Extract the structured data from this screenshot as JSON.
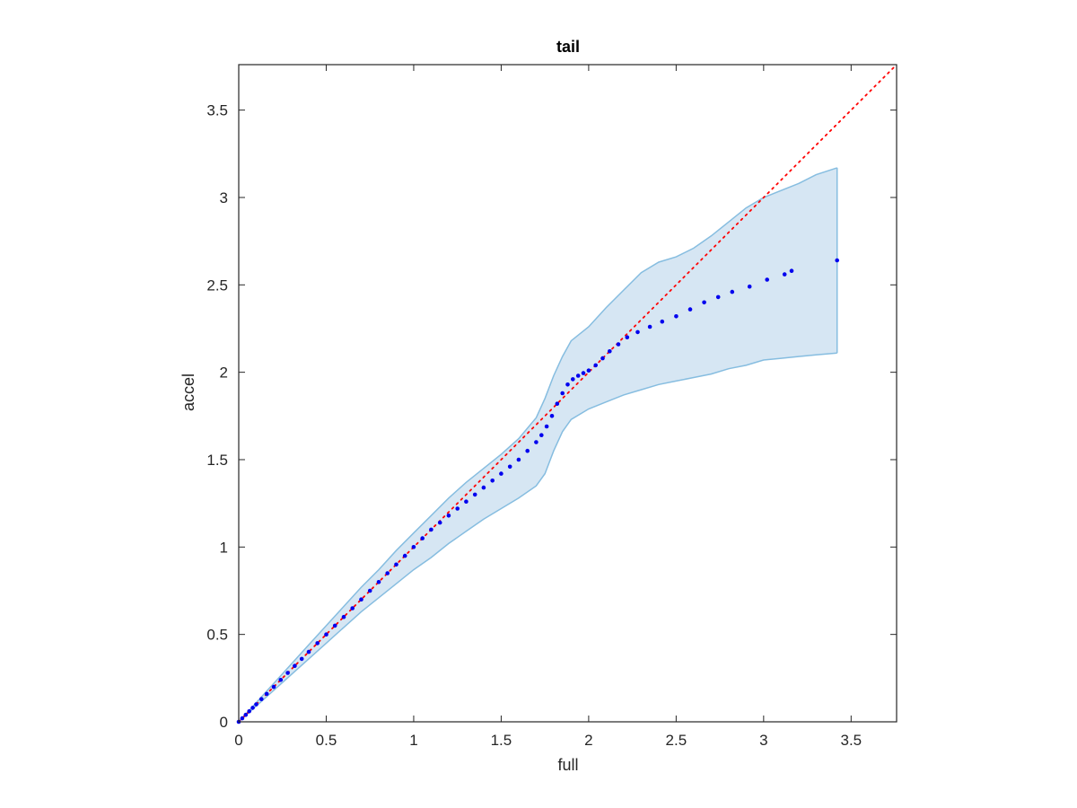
{
  "chart_data": {
    "type": "scatter",
    "title": "tail",
    "xlabel": "full",
    "ylabel": "accel",
    "xlim": [
      0,
      3.76
    ],
    "ylim": [
      0,
      3.76
    ],
    "xticks": [
      0,
      0.5,
      1,
      1.5,
      2,
      2.5,
      3,
      3.5
    ],
    "yticks": [
      0,
      0.5,
      1,
      1.5,
      2,
      2.5,
      3,
      3.5
    ],
    "xtick_labels": [
      "0",
      "0.5",
      "1",
      "1.5",
      "2",
      "2.5",
      "3",
      "3.5"
    ],
    "ytick_labels": [
      "0",
      "0.5",
      "1",
      "1.5",
      "2",
      "2.5",
      "3",
      "3.5"
    ],
    "grid": false,
    "colors": {
      "points": "#0000ee",
      "reference_line": "#ff0000",
      "band_fill": "#d6e6f3",
      "band_edge": "#86bde0",
      "axes": "#262626"
    },
    "reference_line": {
      "style": "dotted",
      "x": [
        0,
        3.76
      ],
      "y": [
        0,
        3.76
      ]
    },
    "band": {
      "x": [
        0.0,
        0.1,
        0.2,
        0.3,
        0.4,
        0.5,
        0.6,
        0.7,
        0.8,
        0.9,
        1.0,
        1.1,
        1.2,
        1.3,
        1.4,
        1.5,
        1.6,
        1.7,
        1.75,
        1.8,
        1.85,
        1.9,
        2.0,
        2.1,
        2.2,
        2.3,
        2.4,
        2.5,
        2.6,
        2.7,
        2.8,
        2.9,
        3.0,
        3.1,
        3.2,
        3.3,
        3.42
      ],
      "upper": [
        0.0,
        0.11,
        0.22,
        0.33,
        0.44,
        0.55,
        0.66,
        0.77,
        0.87,
        0.98,
        1.08,
        1.18,
        1.28,
        1.37,
        1.45,
        1.53,
        1.62,
        1.74,
        1.85,
        1.98,
        2.09,
        2.18,
        2.26,
        2.37,
        2.47,
        2.57,
        2.63,
        2.66,
        2.71,
        2.78,
        2.86,
        2.94,
        3.0,
        3.04,
        3.08,
        3.13,
        3.17
      ],
      "lower": [
        0.0,
        0.09,
        0.18,
        0.27,
        0.36,
        0.45,
        0.54,
        0.63,
        0.71,
        0.79,
        0.87,
        0.94,
        1.02,
        1.09,
        1.16,
        1.22,
        1.28,
        1.35,
        1.42,
        1.55,
        1.66,
        1.73,
        1.79,
        1.83,
        1.87,
        1.9,
        1.93,
        1.95,
        1.97,
        1.99,
        2.02,
        2.04,
        2.07,
        2.08,
        2.09,
        2.1,
        2.11
      ]
    },
    "points": {
      "x": [
        0.0,
        0.02,
        0.04,
        0.06,
        0.08,
        0.1,
        0.13,
        0.16,
        0.2,
        0.24,
        0.28,
        0.32,
        0.36,
        0.4,
        0.45,
        0.5,
        0.55,
        0.6,
        0.65,
        0.7,
        0.75,
        0.8,
        0.85,
        0.9,
        0.95,
        1.0,
        1.05,
        1.1,
        1.15,
        1.2,
        1.25,
        1.3,
        1.35,
        1.4,
        1.45,
        1.5,
        1.55,
        1.6,
        1.65,
        1.7,
        1.73,
        1.76,
        1.79,
        1.82,
        1.85,
        1.88,
        1.91,
        1.94,
        1.97,
        2.0,
        2.04,
        2.08,
        2.12,
        2.17,
        2.22,
        2.28,
        2.35,
        2.42,
        2.5,
        2.58,
        2.66,
        2.74,
        2.82,
        2.92,
        3.02,
        3.12,
        3.16,
        3.42
      ],
      "y": [
        0.0,
        0.02,
        0.04,
        0.06,
        0.08,
        0.1,
        0.13,
        0.16,
        0.2,
        0.24,
        0.28,
        0.32,
        0.36,
        0.4,
        0.45,
        0.5,
        0.55,
        0.6,
        0.65,
        0.7,
        0.75,
        0.8,
        0.85,
        0.9,
        0.95,
        1.0,
        1.05,
        1.1,
        1.14,
        1.18,
        1.22,
        1.26,
        1.3,
        1.34,
        1.38,
        1.42,
        1.46,
        1.5,
        1.55,
        1.6,
        1.64,
        1.69,
        1.75,
        1.82,
        1.88,
        1.93,
        1.96,
        1.98,
        1.995,
        2.01,
        2.04,
        2.08,
        2.12,
        2.16,
        2.2,
        2.23,
        2.26,
        2.29,
        2.32,
        2.36,
        2.4,
        2.43,
        2.46,
        2.49,
        2.53,
        2.56,
        2.58,
        2.64
      ]
    }
  }
}
